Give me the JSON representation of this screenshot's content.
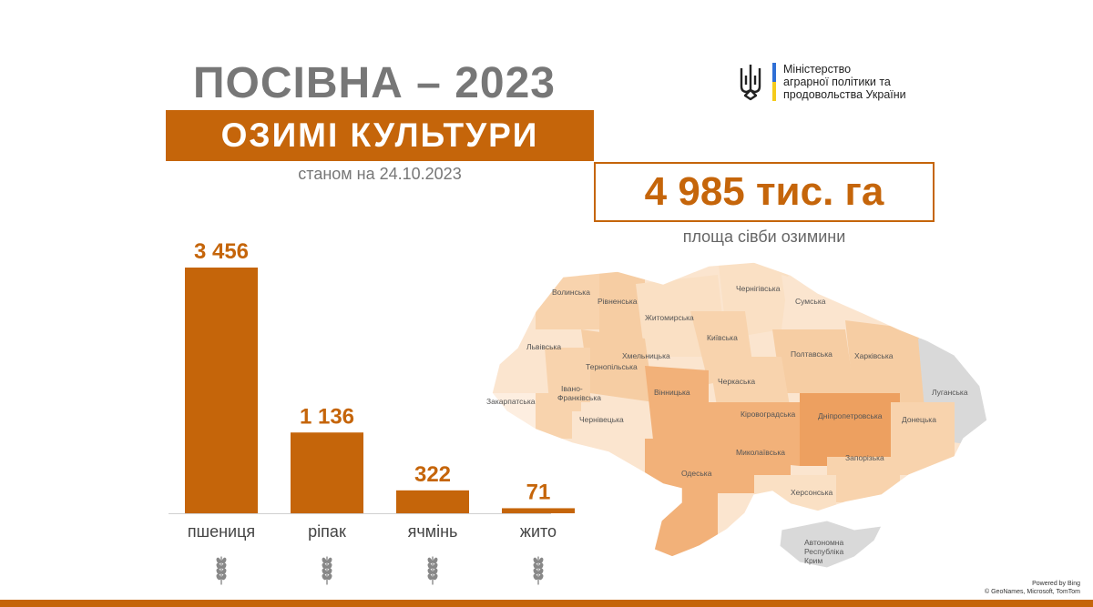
{
  "header": {
    "title": "ПОСІВНА – 2023",
    "subtitle": "ОЗИМІ КУЛЬТУРИ",
    "date": "станом на 24.10.2023"
  },
  "ministry": {
    "line1": "Міністерство",
    "line2": "аграрної політики та",
    "line3": "продовольства України",
    "flag_colors": [
      "#2f6fd6",
      "#f5cb1b"
    ]
  },
  "summary": {
    "total": "4 985 тис. га",
    "total_label": "площа сівби озимини"
  },
  "chart_data": {
    "type": "bar",
    "categories": [
      "пшениця",
      "ріпак",
      "ячмінь",
      "жито"
    ],
    "values": [
      3456,
      1136,
      322,
      71
    ],
    "value_labels": [
      "3 456",
      "1 136",
      "322",
      "71"
    ],
    "icons": [
      "wheat-icon",
      "rapeseed-icon",
      "barley-icon",
      "rye-icon"
    ],
    "ylim": [
      0,
      3456
    ],
    "grid": false,
    "bar_color": "#c5650a",
    "title": "",
    "xlabel": "",
    "ylabel": ""
  },
  "map": {
    "regions": [
      "Волинська",
      "Рівненська",
      "Житомирська",
      "Чернігівська",
      "Сумська",
      "Київська",
      "Львівська",
      "Хмельницька",
      "Тернопільська",
      "Полтавська",
      "Харківська",
      "Луганська",
      "Черкаська",
      "Івано-",
      "Франківська",
      "Закарпатська",
      "Вінницька",
      "Чернівецька",
      "Кіровоградська",
      "Дніпропетровська",
      "Донецька",
      "Миколаївська",
      "Запорізька",
      "Одеська",
      "Херсонська",
      "Автономна",
      "Республіка",
      "Крим"
    ],
    "colors": {
      "light": "#fbe5cf",
      "mid": "#f8d3ad",
      "high": "#f2b179",
      "top": "#eda060",
      "no_data": "#d9d9d9"
    }
  },
  "attribution": {
    "line1": "Powered by Bing",
    "line2": "© GeoNames, Microsoft, TomTom"
  }
}
